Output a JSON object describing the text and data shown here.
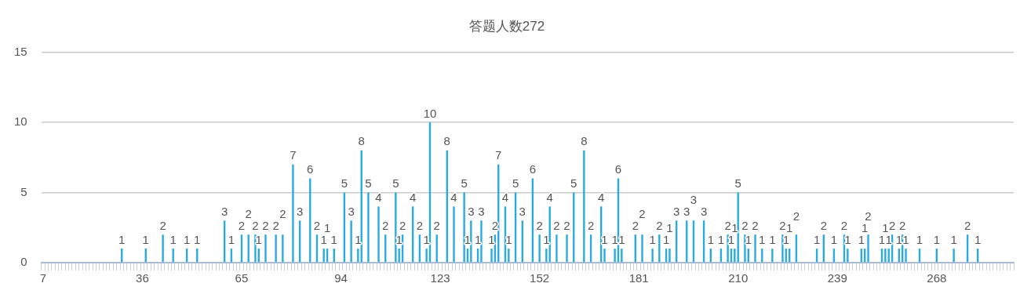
{
  "chart_data": {
    "type": "bar",
    "title": "答题人数272",
    "color": "#29abe2",
    "grid": "y",
    "ylim": [
      0,
      15
    ],
    "yticks": [
      0,
      5,
      10,
      15
    ],
    "categories": [
      "7",
      null,
      null,
      null,
      null,
      null,
      null,
      null,
      null,
      null,
      null,
      null,
      null,
      null,
      null,
      null,
      null,
      null,
      null,
      null,
      null,
      null,
      null,
      null,
      null,
      null,
      null,
      null,
      null,
      "36",
      null,
      null,
      null,
      null,
      null,
      null,
      null,
      null,
      null,
      null,
      null,
      null,
      null,
      null,
      null,
      null,
      null,
      null,
      null,
      null,
      null,
      null,
      null,
      null,
      null,
      null,
      null,
      null,
      "65",
      null,
      null,
      null,
      null,
      null,
      null,
      null,
      null,
      null,
      null,
      null,
      null,
      null,
      null,
      null,
      null,
      null,
      null,
      null,
      null,
      null,
      null,
      null,
      null,
      null,
      null,
      null,
      null,
      "94",
      null,
      null,
      null,
      null,
      null,
      null,
      null,
      null,
      null,
      null,
      null,
      null,
      null,
      null,
      null,
      null,
      null,
      null,
      null,
      null,
      null,
      null,
      null,
      null,
      null,
      null,
      null,
      null,
      "123",
      null,
      null,
      null,
      null,
      null,
      null,
      null,
      null,
      null,
      null,
      null,
      null,
      null,
      null,
      null,
      null,
      null,
      null,
      null,
      null,
      null,
      null,
      null,
      null,
      null,
      null,
      null,
      null,
      "152",
      null,
      null,
      null,
      null,
      null,
      null,
      null,
      null,
      null,
      null,
      null,
      null,
      null,
      null,
      null,
      null,
      null,
      null,
      null,
      null,
      null,
      null,
      null,
      null,
      null,
      null,
      null,
      null,
      "181",
      null,
      null,
      null,
      null,
      null,
      null,
      null,
      null,
      null,
      null,
      null,
      null,
      null,
      null,
      null,
      null,
      null,
      null,
      null,
      null,
      null,
      null,
      null,
      null,
      null,
      null,
      null,
      null,
      "210",
      null,
      null,
      null,
      null,
      null,
      null,
      null,
      null,
      null,
      null,
      null,
      null,
      null,
      null,
      null,
      null,
      null,
      null,
      null,
      null,
      null,
      null,
      null,
      null,
      null,
      null,
      null,
      null,
      "239",
      null,
      null,
      null,
      null,
      null,
      null,
      null,
      null,
      null,
      null,
      null,
      null,
      null,
      null,
      null,
      null,
      null,
      null,
      null,
      null,
      null,
      null,
      null,
      null,
      null,
      null,
      null,
      null,
      "268",
      null,
      null,
      null,
      null,
      null,
      null,
      null,
      null,
      null,
      null,
      null,
      null,
      null,
      null,
      null,
      null,
      null,
      null,
      null,
      null,
      null,
      null
    ],
    "values": [
      0,
      0,
      0,
      0,
      0,
      0,
      0,
      0,
      0,
      0,
      0,
      0,
      0,
      0,
      0,
      0,
      0,
      0,
      0,
      0,
      0,
      0,
      0,
      1,
      0,
      0,
      0,
      0,
      0,
      0,
      1,
      0,
      0,
      0,
      0,
      2,
      0,
      0,
      1,
      0,
      0,
      0,
      1,
      0,
      0,
      1,
      0,
      0,
      0,
      0,
      0,
      0,
      0,
      3,
      0,
      1,
      0,
      0,
      2,
      0,
      2,
      0,
      2,
      1,
      0,
      2,
      0,
      0,
      2,
      0,
      2,
      0,
      0,
      7,
      0,
      3,
      0,
      0,
      6,
      0,
      2,
      0,
      1,
      1,
      0,
      1,
      0,
      0,
      5,
      0,
      3,
      0,
      1,
      8,
      0,
      5,
      0,
      0,
      4,
      0,
      2,
      0,
      0,
      5,
      1,
      2,
      0,
      0,
      4,
      0,
      2,
      0,
      1,
      10,
      0,
      2,
      0,
      0,
      8,
      0,
      4,
      0,
      0,
      5,
      1,
      3,
      0,
      1,
      3,
      0,
      0,
      1,
      2,
      7,
      0,
      4,
      1,
      0,
      5,
      0,
      3,
      0,
      0,
      6,
      0,
      2,
      0,
      1,
      4,
      0,
      2,
      0,
      0,
      2,
      0,
      5,
      0,
      0,
      8,
      0,
      2,
      0,
      0,
      4,
      1,
      0,
      0,
      1,
      6,
      1,
      0,
      0,
      0,
      2,
      0,
      2,
      0,
      0,
      1,
      0,
      2,
      0,
      1,
      1,
      0,
      3,
      0,
      0,
      3,
      0,
      3,
      0,
      0,
      3,
      0,
      1,
      0,
      0,
      1,
      0,
      2,
      1,
      1,
      5,
      0,
      2,
      1,
      0,
      2,
      0,
      1,
      0,
      0,
      1,
      0,
      0,
      2,
      1,
      1,
      0,
      2,
      0,
      0,
      0,
      0,
      0,
      1,
      0,
      2,
      0,
      0,
      1,
      0,
      0,
      2,
      1,
      0,
      0,
      0,
      1,
      1,
      2,
      0,
      0,
      0,
      1,
      1,
      1,
      2,
      0,
      1,
      2,
      1,
      0,
      0,
      0,
      1,
      0,
      0,
      0,
      0,
      1,
      0,
      0,
      0,
      0,
      1,
      0,
      0,
      0,
      2,
      0,
      0,
      1,
      0,
      0,
      0,
      0,
      0,
      0,
      0,
      0,
      0,
      0
    ],
    "value_labels": [
      null,
      null,
      null,
      null,
      null,
      null,
      null,
      null,
      null,
      null,
      null,
      null,
      null,
      null,
      null,
      null,
      null,
      null,
      null,
      null,
      null,
      null,
      null,
      "1",
      null,
      null,
      null,
      null,
      null,
      null,
      "1",
      null,
      null,
      null,
      null,
      "2",
      null,
      null,
      "1",
      null,
      null,
      null,
      "1",
      null,
      null,
      "1",
      null,
      null,
      null,
      null,
      null,
      null,
      null,
      "3",
      null,
      "1",
      null,
      null,
      "2",
      null,
      "2",
      null,
      "2",
      "1",
      null,
      "2",
      null,
      null,
      "2",
      null,
      "2",
      null,
      null,
      "7",
      null,
      "3",
      null,
      null,
      "6",
      null,
      "2",
      null,
      "1",
      "1",
      null,
      "1",
      null,
      null,
      "5",
      null,
      "3",
      null,
      "1",
      "8",
      null,
      "5",
      null,
      null,
      "4",
      null,
      "2",
      null,
      null,
      "5",
      "1",
      "2",
      null,
      null,
      "4",
      null,
      "2",
      null,
      "1",
      "10",
      null,
      "2",
      null,
      null,
      "8",
      null,
      "4",
      null,
      null,
      "5",
      "1",
      "3",
      null,
      "1",
      "3",
      null,
      null,
      "1",
      "2",
      "7",
      null,
      "4",
      "1",
      null,
      "5",
      null,
      "3",
      null,
      null,
      "6",
      null,
      "2",
      null,
      "1",
      "4",
      null,
      "2",
      null,
      null,
      "2",
      null,
      "5",
      null,
      null,
      "8",
      null,
      "2",
      null,
      null,
      "4",
      "1",
      null,
      null,
      "1",
      "6",
      "1",
      null,
      null,
      null,
      "2",
      null,
      "2",
      null,
      null,
      "1",
      null,
      "2",
      null,
      "1",
      "1",
      null,
      "3",
      null,
      null,
      "3",
      null,
      "3",
      null,
      null,
      "3",
      null,
      "1",
      null,
      null,
      "1",
      null,
      "2",
      "1",
      "1",
      "5",
      null,
      "2",
      "1",
      null,
      "2",
      null,
      "1",
      null,
      null,
      "1",
      null,
      null,
      "2",
      "1",
      "1",
      null,
      "2",
      null,
      null,
      null,
      null,
      null,
      "1",
      null,
      "2",
      null,
      null,
      "1",
      null,
      null,
      "2",
      "1",
      null,
      null,
      null,
      "1",
      "1",
      "2",
      null,
      null,
      null,
      "1",
      "1",
      "1",
      "2",
      null,
      "1",
      "2",
      "1",
      null,
      null,
      null,
      "1",
      null,
      null,
      null,
      null,
      "1",
      null,
      null,
      null,
      null,
      "1",
      null,
      null,
      null,
      "2",
      null,
      null,
      "1",
      null,
      null,
      null,
      null,
      null,
      null,
      null,
      null,
      null,
      null
    ]
  }
}
